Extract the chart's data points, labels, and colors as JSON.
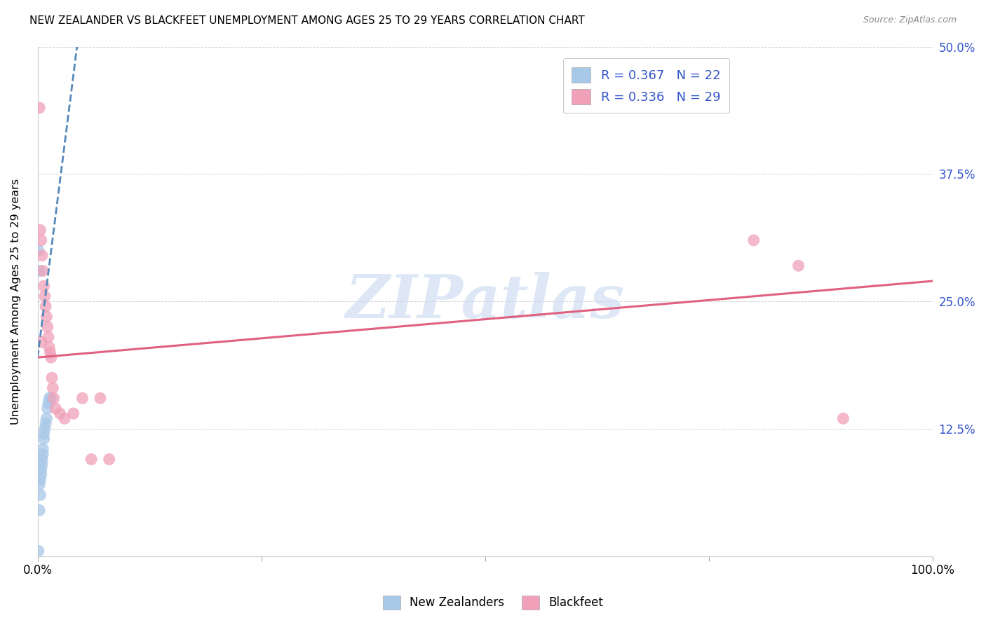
{
  "title": "NEW ZEALANDER VS BLACKFEET UNEMPLOYMENT AMONG AGES 25 TO 29 YEARS CORRELATION CHART",
  "source": "Source: ZipAtlas.com",
  "ylabel": "Unemployment Among Ages 25 to 29 years",
  "xlabel": "",
  "xlim": [
    0,
    1.0
  ],
  "ylim": [
    0,
    0.5
  ],
  "xticks": [
    0.0,
    0.25,
    0.5,
    0.75,
    1.0
  ],
  "xtick_labels": [
    "0.0%",
    "",
    "",
    "",
    "100.0%"
  ],
  "yticks": [
    0.0,
    0.125,
    0.25,
    0.375,
    0.5
  ],
  "ytick_labels": [
    "",
    "12.5%",
    "25.0%",
    "37.5%",
    "50.0%"
  ],
  "nz_R": 0.367,
  "nz_N": 22,
  "bf_R": 0.336,
  "bf_N": 29,
  "nz_color": "#a8c8e8",
  "bf_color": "#f0a0b8",
  "nz_line_color": "#5588bb",
  "bf_line_color": "#e06080",
  "legend_text_color": "#3355cc",
  "background_color": "#ffffff",
  "nz_scatter_x": [
    0.001,
    0.002,
    0.002,
    0.003,
    0.003,
    0.004,
    0.004,
    0.005,
    0.005,
    0.006,
    0.006,
    0.007,
    0.007,
    0.008,
    0.009,
    0.01,
    0.011,
    0.012,
    0.013,
    0.015,
    0.001,
    0.002
  ],
  "nz_scatter_y": [
    0.005,
    0.045,
    0.07,
    0.06,
    0.075,
    0.08,
    0.085,
    0.09,
    0.095,
    0.1,
    0.105,
    0.115,
    0.12,
    0.125,
    0.13,
    0.135,
    0.145,
    0.15,
    0.155,
    0.155,
    0.3,
    0.28
  ],
  "bf_scatter_x": [
    0.002,
    0.003,
    0.004,
    0.005,
    0.006,
    0.007,
    0.008,
    0.009,
    0.01,
    0.011,
    0.012,
    0.013,
    0.014,
    0.015,
    0.016,
    0.017,
    0.018,
    0.02,
    0.025,
    0.03,
    0.04,
    0.05,
    0.06,
    0.07,
    0.08,
    0.8,
    0.85,
    0.9,
    0.004
  ],
  "bf_scatter_y": [
    0.44,
    0.32,
    0.31,
    0.295,
    0.28,
    0.265,
    0.255,
    0.245,
    0.235,
    0.225,
    0.215,
    0.205,
    0.2,
    0.195,
    0.175,
    0.165,
    0.155,
    0.145,
    0.14,
    0.135,
    0.14,
    0.155,
    0.095,
    0.155,
    0.095,
    0.31,
    0.285,
    0.135,
    0.21
  ],
  "nz_trendline_x": [
    0.0,
    0.044
  ],
  "nz_trendline_y": [
    0.195,
    0.5
  ],
  "bf_trendline_x": [
    0.0,
    1.0
  ],
  "bf_trendline_y": [
    0.195,
    0.27
  ],
  "watermark": "ZIPatlas",
  "watermark_color": "#c8d8f0"
}
